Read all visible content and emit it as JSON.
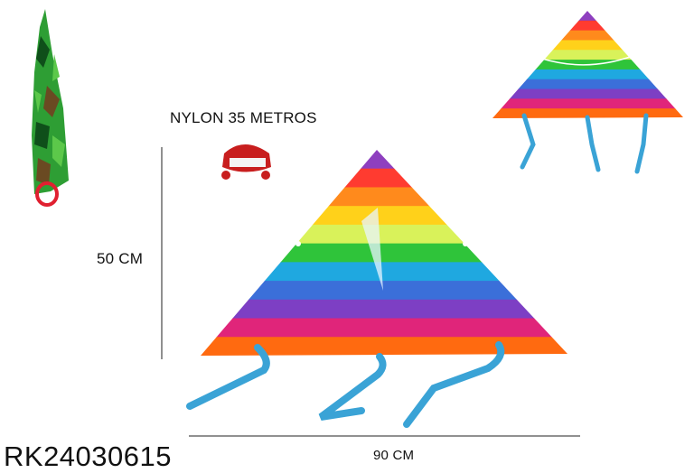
{
  "labels": {
    "line_length": "NYLON 35 METROS",
    "height": "50 CM",
    "width": "90 CM",
    "sku": "RK24030615"
  },
  "kite": {
    "stripe_colors": [
      "#8e3fbf",
      "#ff3b30",
      "#ff8a1c",
      "#ffd11a",
      "#d9f25a",
      "#2fc43a",
      "#1fa8e0",
      "#3b6fd9",
      "#7d3fc4",
      "#e0257a",
      "#ff6a10"
    ],
    "tail_color": "#3aa3d6"
  },
  "bag": {
    "pattern": "green camouflage",
    "colors": [
      "#1f8a2a",
      "#3fb83a",
      "#0f4f1a",
      "#6a4a22"
    ]
  },
  "reel_color": "#c81e1e"
}
